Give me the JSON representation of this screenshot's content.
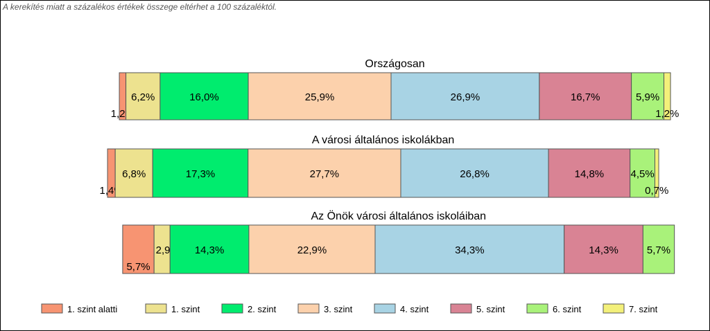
{
  "note": "A kerekítés miatt a  százalékos értékek összege eltérhet a 100 százaléktól.",
  "chart_data": {
    "type": "bar",
    "stacked": true,
    "orientation": "horizontal",
    "categories": [
      "Országosan",
      "A városi általános iskolákban",
      "Az Önök városi általános iskoláiban"
    ],
    "series": [
      {
        "name": "1. szint alatti",
        "color": "#F79472",
        "values": [
          1.2,
          1.4,
          5.7
        ],
        "labels": [
          "1,2%",
          "1,4%",
          "5,7%"
        ]
      },
      {
        "name": "1. szint",
        "color": "#EDE28F",
        "values": [
          6.2,
          6.8,
          2.9
        ],
        "labels": [
          "6,2%",
          "6,8%",
          "2,9%"
        ]
      },
      {
        "name": "2. szint",
        "color": "#00EC6E",
        "values": [
          16.0,
          17.3,
          14.3
        ],
        "labels": [
          "16,0%",
          "17,3%",
          "14,3%"
        ]
      },
      {
        "name": "3. szint",
        "color": "#FCD1AC",
        "values": [
          25.9,
          27.7,
          22.9
        ],
        "labels": [
          "25,9%",
          "27,7%",
          "22,9%"
        ]
      },
      {
        "name": "4. szint",
        "color": "#A8D3E4",
        "values": [
          26.9,
          26.8,
          34.3
        ],
        "labels": [
          "26,9%",
          "26,8%",
          "34,3%"
        ]
      },
      {
        "name": "5. szint",
        "color": "#D98394",
        "values": [
          16.7,
          14.8,
          14.3
        ],
        "labels": [
          "16,7%",
          "14,8%",
          "14,3%"
        ]
      },
      {
        "name": "6. szint",
        "color": "#A9F27A",
        "values": [
          5.9,
          4.5,
          5.7
        ],
        "labels": [
          "5,9%",
          "4,5%",
          "5,7%"
        ]
      },
      {
        "name": "7. szint",
        "color": "#F3F07A",
        "values": [
          1.2,
          0.7,
          0.0
        ],
        "labels": [
          "1,2%",
          "0,7%",
          ""
        ]
      }
    ],
    "legend_position": "bottom"
  }
}
